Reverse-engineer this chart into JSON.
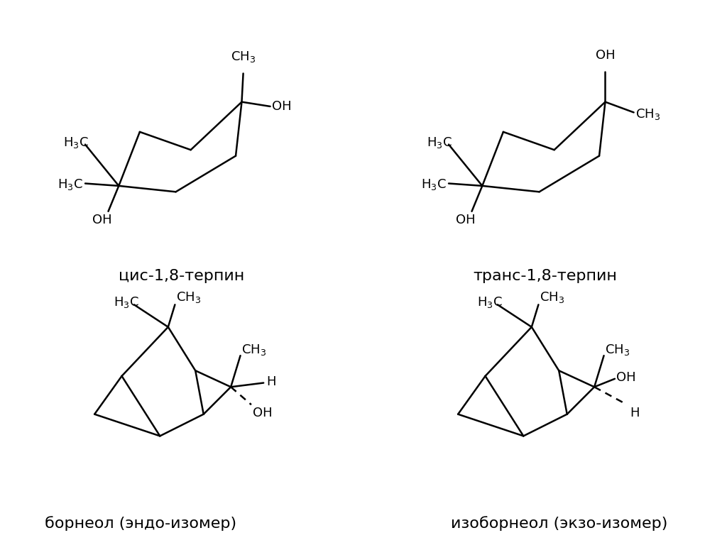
{
  "bg_color": "#ffffff",
  "line_color": "#000000",
  "line_width": 1.8,
  "font_size_label": 16,
  "font_size_chem": 14,
  "labels": [
    "цис-1,8-терпин",
    "транс-1,8-терпин",
    "борнеол (эндо-изомер)",
    "изоборнеол (экзо-изомер)"
  ]
}
